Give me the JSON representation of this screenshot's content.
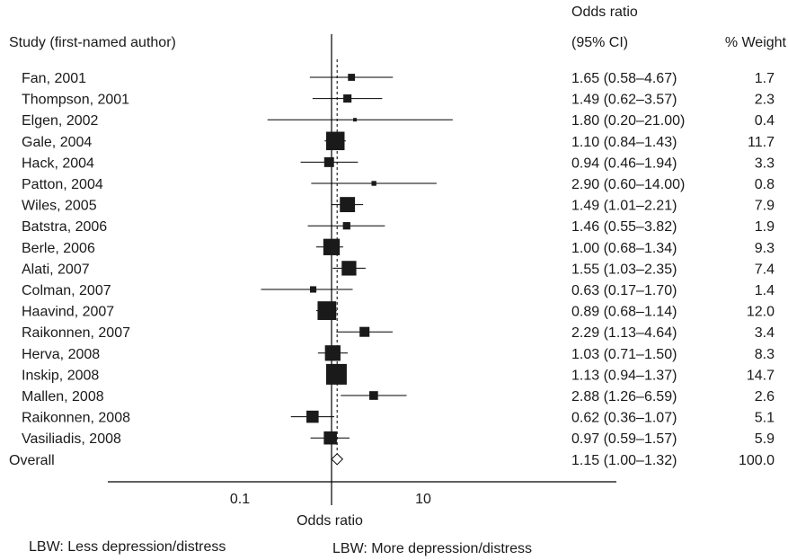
{
  "chart_data": {
    "type": "forest",
    "x_scale": "log10",
    "xlim": [
      0.04,
      25
    ],
    "x_ticks": [
      0.1,
      1,
      10
    ],
    "x_tick_labels": [
      "0.1",
      "",
      "10"
    ],
    "xlabel": "Odds ratio",
    "header_study": "Study (first-named author)",
    "header_or_line1": "Odds ratio",
    "header_or_line2": "(95% CI)",
    "header_weight": "% Weight",
    "footer_left": "LBW: Less depression/distress",
    "footer_right": "LBW: More depression/distress",
    "reference_line": 1,
    "overall_dashed_line": 1.15,
    "studies": [
      {
        "study": "Fan, 2001",
        "or": 1.65,
        "lo": 0.58,
        "hi": 4.67,
        "or_ci": "1.65 (0.58–4.67)",
        "weight": "1.7"
      },
      {
        "study": "Thompson, 2001",
        "or": 1.49,
        "lo": 0.62,
        "hi": 3.57,
        "or_ci": "1.49 (0.62–3.57)",
        "weight": "2.3"
      },
      {
        "study": "Elgen, 2002",
        "or": 1.8,
        "lo": 0.2,
        "hi": 21.0,
        "or_ci": "1.80 (0.20–21.00)",
        "weight": "0.4"
      },
      {
        "study": "Gale, 2004",
        "or": 1.1,
        "lo": 0.84,
        "hi": 1.43,
        "or_ci": "1.10 (0.84–1.43)",
        "weight": "11.7"
      },
      {
        "study": "Hack, 2004",
        "or": 0.94,
        "lo": 0.46,
        "hi": 1.94,
        "or_ci": "0.94 (0.46–1.94)",
        "weight": "3.3"
      },
      {
        "study": "Patton, 2004",
        "or": 2.9,
        "lo": 0.6,
        "hi": 14.0,
        "or_ci": "2.90 (0.60–14.00)",
        "weight": "0.8"
      },
      {
        "study": "Wiles, 2005",
        "or": 1.49,
        "lo": 1.01,
        "hi": 2.21,
        "or_ci": "1.49 (1.01–2.21)",
        "weight": "7.9"
      },
      {
        "study": "Batstra, 2006",
        "or": 1.46,
        "lo": 0.55,
        "hi": 3.82,
        "or_ci": "1.46 (0.55–3.82)",
        "weight": "1.9"
      },
      {
        "study": "Berle, 2006",
        "or": 1.0,
        "lo": 0.68,
        "hi": 1.34,
        "or_ci": "1.00 (0.68–1.34)",
        "weight": "9.3"
      },
      {
        "study": "Alati, 2007",
        "or": 1.55,
        "lo": 1.03,
        "hi": 2.35,
        "or_ci": "1.55 (1.03–2.35)",
        "weight": "7.4"
      },
      {
        "study": "Colman, 2007",
        "or": 0.63,
        "lo": 0.17,
        "hi": 1.7,
        "or_ci": "0.63 (0.17–1.70)",
        "weight": "1.4"
      },
      {
        "study": "Haavind, 2007",
        "or": 0.89,
        "lo": 0.68,
        "hi": 1.14,
        "or_ci": "0.89 (0.68–1.14)",
        "weight": "12.0"
      },
      {
        "study": "Raikonnen, 2007",
        "or": 2.29,
        "lo": 1.13,
        "hi": 4.64,
        "or_ci": "2.29 (1.13–4.64)",
        "weight": "3.4"
      },
      {
        "study": "Herva, 2008",
        "or": 1.03,
        "lo": 0.71,
        "hi": 1.5,
        "or_ci": "1.03 (0.71–1.50)",
        "weight": "8.3"
      },
      {
        "study": "Inskip, 2008",
        "or": 1.13,
        "lo": 0.94,
        "hi": 1.37,
        "or_ci": "1.13 (0.94–1.37)",
        "weight": "14.7"
      },
      {
        "study": "Mallen, 2008",
        "or": 2.88,
        "lo": 1.26,
        "hi": 6.59,
        "or_ci": "2.88 (1.26–6.59)",
        "weight": "2.6"
      },
      {
        "study": "Raikonnen, 2008",
        "or": 0.62,
        "lo": 0.36,
        "hi": 1.07,
        "or_ci": "0.62 (0.36–1.07)",
        "weight": "5.1"
      },
      {
        "study": "Vasiliadis, 2008",
        "or": 0.97,
        "lo": 0.59,
        "hi": 1.57,
        "or_ci": "0.97 (0.59–1.57)",
        "weight": "5.9"
      }
    ],
    "overall": {
      "study": "Overall",
      "or": 1.15,
      "lo": 1.0,
      "hi": 1.32,
      "or_ci": "1.15 (1.00–1.32)",
      "weight": "100.0"
    }
  }
}
